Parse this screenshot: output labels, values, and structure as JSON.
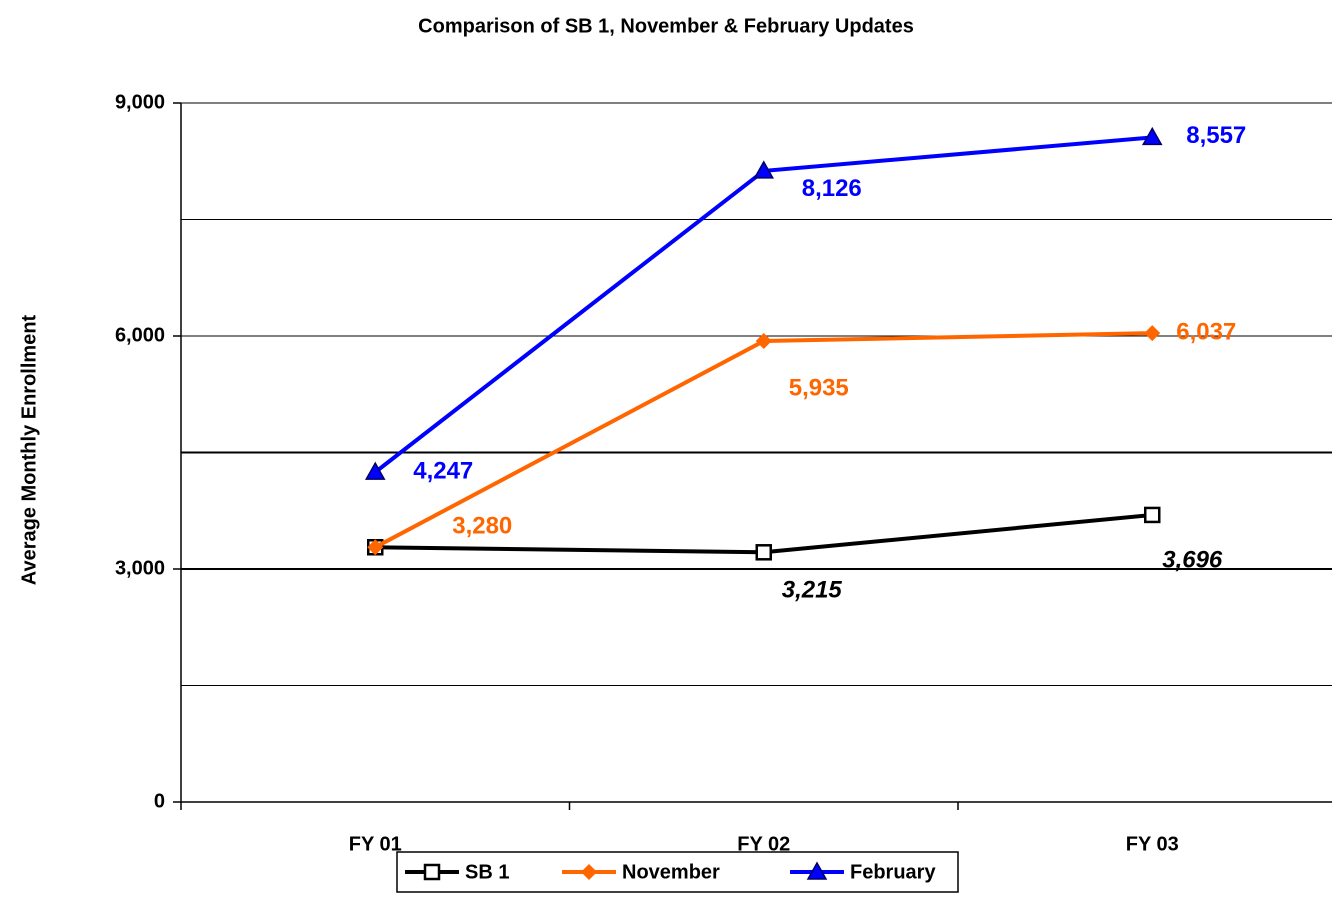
{
  "chart_data": {
    "type": "line",
    "title": "Comparison of SB 1, November & February Updates",
    "y_label": "Average Monthly Enrollment",
    "categories": [
      "FY 01",
      "FY 02",
      "FY 03"
    ],
    "series": [
      {
        "name": "SB 1",
        "color": "#000000",
        "marker": "square",
        "values": [
          3280,
          3215,
          3696
        ],
        "value_labels": [
          null,
          "3,215",
          "3,696"
        ]
      },
      {
        "name": "November",
        "color": "#ff6600",
        "marker": "diamond",
        "values": [
          3280,
          5935,
          6037
        ],
        "value_labels": [
          "3,280",
          "5,935",
          "6,037"
        ]
      },
      {
        "name": "February",
        "color": "#0000ff",
        "marker": "triangle",
        "values": [
          4247,
          8126,
          8557
        ],
        "value_labels": [
          "4,247",
          "8,126",
          "8,557"
        ]
      }
    ],
    "ylim": [
      0,
      9000
    ],
    "yticks": [
      0,
      {
        "value": 3000,
        "label": "3,000"
      },
      {
        "value": 6000,
        "label": "6,000"
      },
      {
        "value": 9000,
        "label": "9,000"
      }
    ],
    "ygrid": [
      1500,
      3000,
      4500,
      6000,
      7500,
      9000
    ],
    "legend": "bottom"
  }
}
